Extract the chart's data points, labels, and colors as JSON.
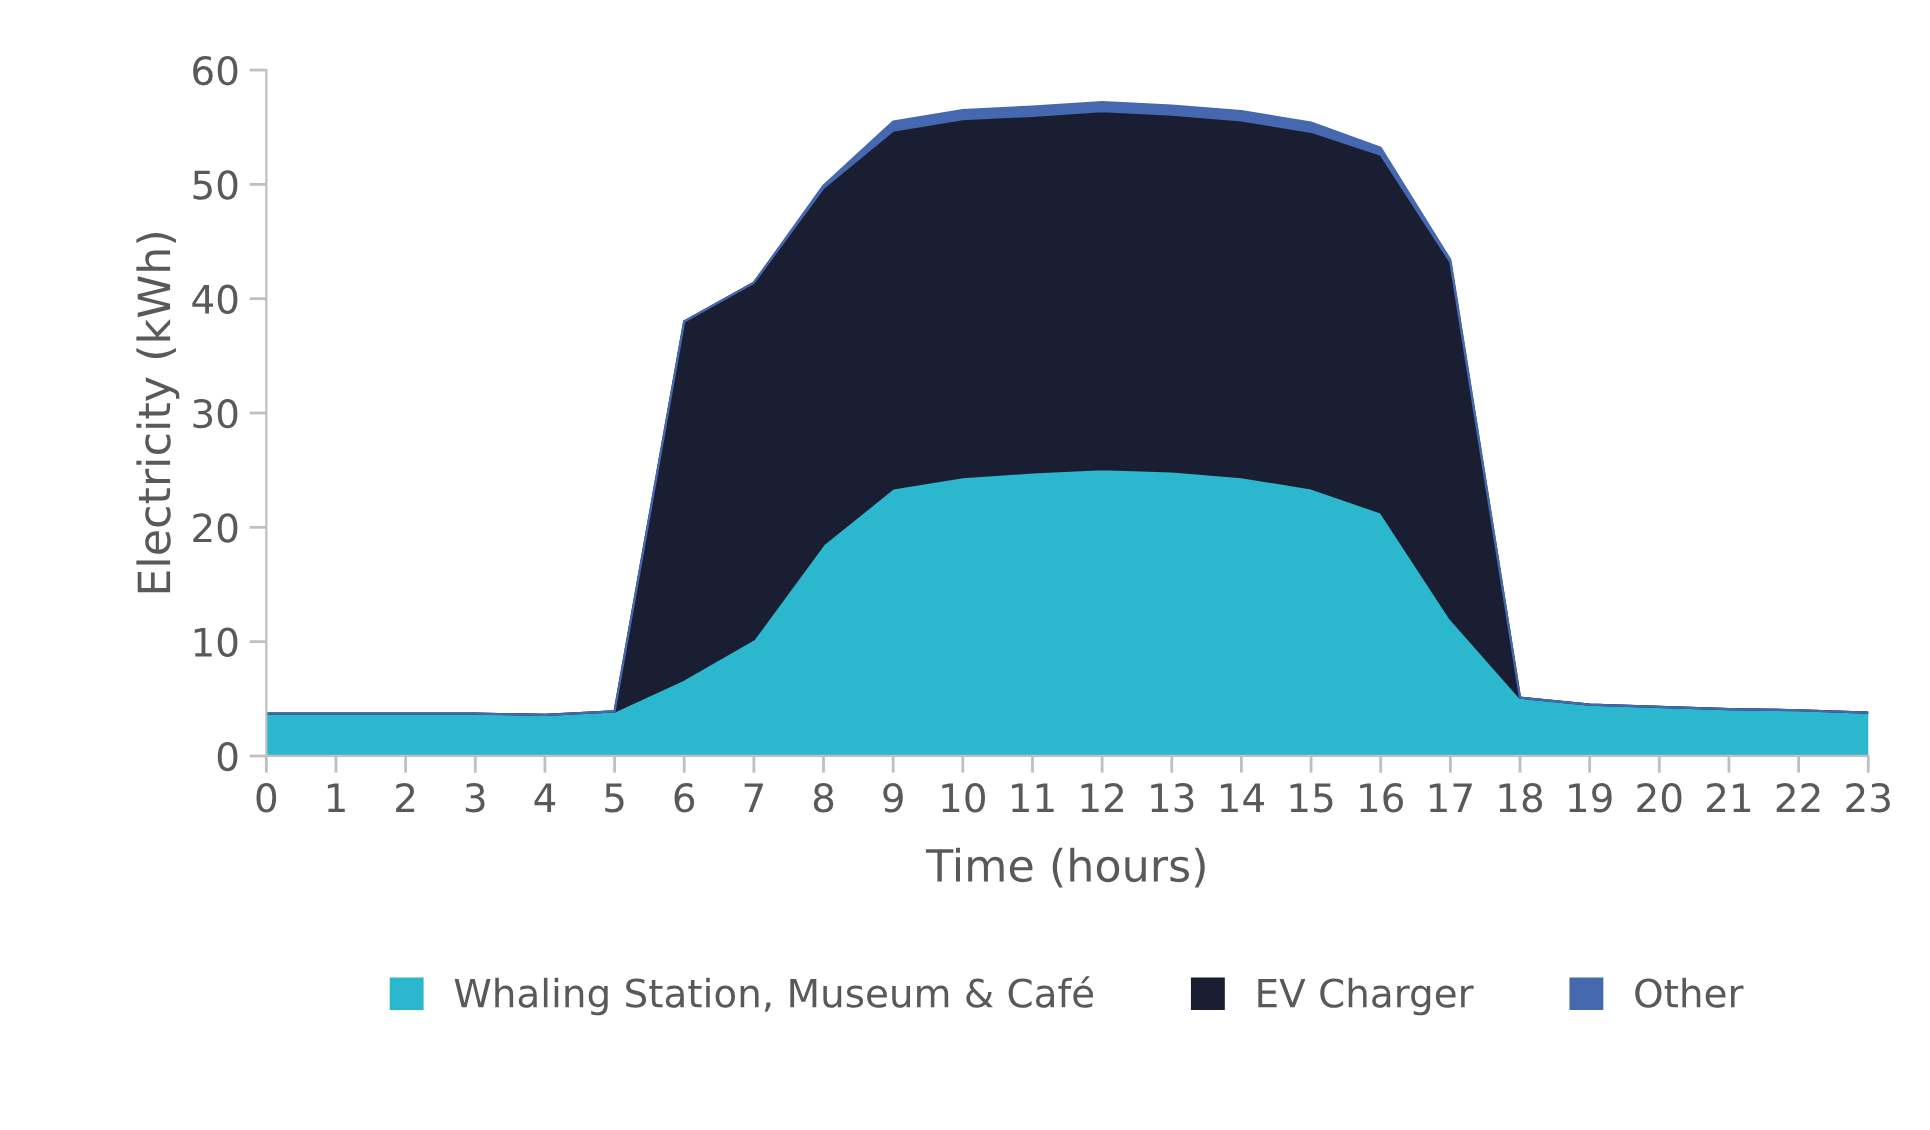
{
  "chart_data": {
    "type": "area",
    "stacked": true,
    "xlabel": "Time (hours)",
    "ylabel": "Electricity (kWh)",
    "categories": [
      "0",
      "1",
      "2",
      "3",
      "4",
      "5",
      "6",
      "7",
      "8",
      "9",
      "10",
      "11",
      "12",
      "13",
      "14",
      "15",
      "16",
      "17",
      "18",
      "19",
      "20",
      "21",
      "22",
      "23"
    ],
    "series": [
      {
        "name": "Whaling Station, Museum & Café",
        "color": "#2bb7cd",
        "values": [
          3.7,
          3.7,
          3.7,
          3.7,
          3.6,
          3.9,
          6.7,
          10.2,
          18.5,
          23.4,
          24.4,
          24.8,
          25.1,
          24.9,
          24.4,
          23.4,
          21.3,
          12.0,
          5.1,
          4.5,
          4.3,
          4.1,
          4.0,
          3.8
        ]
      },
      {
        "name": "EV Charger",
        "color": "#1a1e33",
        "values": [
          0,
          0,
          0,
          0,
          0,
          0,
          31.3,
          31.2,
          31.2,
          31.3,
          31.3,
          31.2,
          31.3,
          31.2,
          31.2,
          31.2,
          31.3,
          31.2,
          0,
          0,
          0,
          0,
          0,
          0
        ]
      },
      {
        "name": "Other",
        "color": "#4568b0",
        "values": [
          0,
          0,
          0,
          0,
          0,
          0,
          0,
          0,
          0.2,
          0.8,
          0.8,
          0.8,
          0.8,
          0.8,
          0.8,
          0.8,
          0.6,
          0.2,
          0,
          0,
          0,
          0,
          0,
          0
        ]
      }
    ],
    "ylim": [
      0,
      60
    ],
    "yticks": [
      0,
      10,
      20,
      30,
      40,
      50,
      60
    ],
    "grid": false,
    "legend": "bottom"
  }
}
